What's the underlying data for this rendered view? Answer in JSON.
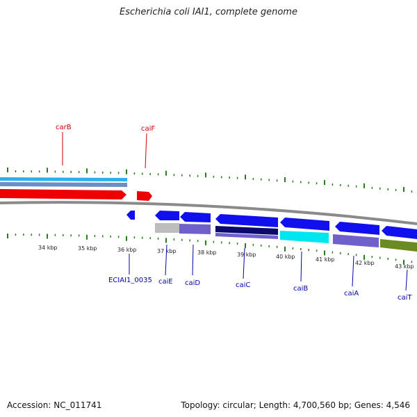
{
  "title": "Escherichia coli IAI1, complete genome",
  "accession_text": "Accession: NC_011741",
  "summary_text": "Topology: circular; Length: 4,700,560 bp; Genes: 4,546",
  "colors": {
    "tick": "#2a7a1e",
    "top_label": "#cc0000",
    "bottom_label": "#0000aa",
    "backbone": "#8a8a8a"
  },
  "kbp_labels": [
    "34 kbp",
    "35 kbp",
    "36 kbp",
    "37 kbp",
    "38 kbp",
    "39 kbp",
    "40 kbp",
    "41 kbp",
    "42 kbp",
    "43 kbp"
  ],
  "top_gene_labels": [
    "carB",
    "caiF"
  ],
  "bottom_gene_labels": [
    "ECIAI1_0035",
    "caiE",
    "caiD",
    "caiC",
    "caiB",
    "caiA",
    "caiT"
  ]
}
